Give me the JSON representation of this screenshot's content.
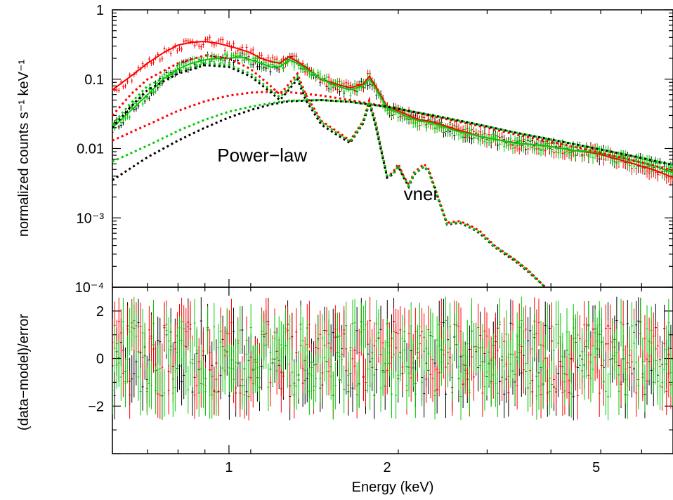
{
  "chart_data": [
    {
      "type": "line",
      "panel": "spectrum",
      "ylabel": "normalized counts s⁻¹ keV⁻¹",
      "yscale": "log",
      "xscale": "log",
      "xlim": [
        0.6,
        7.0
      ],
      "ylim": [
        0.0001,
        1
      ],
      "yticks": [
        {
          "value": 1,
          "label": "1"
        },
        {
          "value": 0.1,
          "label": "0.1"
        },
        {
          "value": 0.01,
          "label": "0.01"
        },
        {
          "value": 0.001,
          "label": "10⁻³"
        },
        {
          "value": 0.0001,
          "label": "10⁻⁴"
        }
      ],
      "annotations": [
        {
          "text": "Power−law",
          "x": 0.95,
          "y": 0.0065
        },
        {
          "text": "vnei",
          "x": 2.15,
          "y": 0.0018
        }
      ],
      "series": [
        {
          "color": "#ff0000",
          "style": "solid",
          "role": "total model",
          "x": [
            0.6,
            0.65,
            0.7,
            0.75,
            0.8,
            0.85,
            0.9,
            0.95,
            1.0,
            1.05,
            1.1,
            1.15,
            1.2,
            1.25,
            1.3,
            1.35,
            1.4,
            1.45,
            1.5,
            1.6,
            1.7,
            1.8,
            1.85,
            1.9,
            2.0,
            2.1,
            2.2,
            2.3,
            2.4,
            2.5,
            2.7,
            3.0,
            3.5,
            4.0,
            4.5,
            5.0,
            5.5,
            6.0,
            6.5,
            7.0
          ],
          "y": [
            0.07,
            0.11,
            0.17,
            0.24,
            0.31,
            0.34,
            0.35,
            0.33,
            0.3,
            0.27,
            0.24,
            0.2,
            0.18,
            0.17,
            0.21,
            0.18,
            0.15,
            0.12,
            0.1,
            0.085,
            0.075,
            0.085,
            0.11,
            0.08,
            0.04,
            0.035,
            0.03,
            0.026,
            0.025,
            0.023,
            0.019,
            0.015,
            0.012,
            0.011,
            0.0095,
            0.0085,
            0.007,
            0.0058,
            0.0048,
            0.0038
          ]
        },
        {
          "color": "#00cc00",
          "style": "solid",
          "role": "total model",
          "x": [
            0.6,
            0.65,
            0.7,
            0.75,
            0.8,
            0.85,
            0.9,
            0.95,
            1.0,
            1.05,
            1.1,
            1.15,
            1.2,
            1.25,
            1.3,
            1.35,
            1.4,
            1.45,
            1.5,
            1.6,
            1.7,
            1.8,
            1.85,
            1.9,
            2.0,
            2.1,
            2.2,
            2.3,
            2.4,
            2.5,
            2.7,
            3.0,
            3.5,
            4.0,
            4.5,
            5.0,
            5.5,
            6.0,
            6.5,
            7.0
          ],
          "y": [
            0.02,
            0.035,
            0.06,
            0.1,
            0.14,
            0.17,
            0.19,
            0.2,
            0.2,
            0.21,
            0.19,
            0.17,
            0.15,
            0.15,
            0.19,
            0.17,
            0.14,
            0.12,
            0.1,
            0.08,
            0.07,
            0.08,
            0.1,
            0.075,
            0.038,
            0.033,
            0.028,
            0.025,
            0.024,
            0.022,
            0.018,
            0.015,
            0.012,
            0.011,
            0.0095,
            0.0088,
            0.0075,
            0.0065,
            0.0055,
            0.0045
          ]
        },
        {
          "color": "#ff0000",
          "style": "dotted",
          "role": "power-law component",
          "x": [
            0.6,
            0.7,
            0.8,
            0.9,
            1.0,
            1.1,
            1.2,
            1.3,
            1.5,
            1.7,
            2.0,
            2.5,
            3.0,
            3.5,
            4.0,
            5.0,
            6.0,
            7.0
          ],
          "y": [
            0.013,
            0.022,
            0.035,
            0.048,
            0.058,
            0.064,
            0.066,
            0.065,
            0.058,
            0.05,
            0.04,
            0.028,
            0.021,
            0.016,
            0.013,
            0.009,
            0.0065,
            0.0048
          ]
        },
        {
          "color": "#000000",
          "style": "dotted",
          "role": "power-law component",
          "x": [
            0.6,
            0.7,
            0.8,
            0.9,
            1.0,
            1.1,
            1.2,
            1.3,
            1.5,
            1.7,
            2.0,
            2.5,
            3.0,
            3.5,
            4.0,
            5.0,
            6.0,
            7.0
          ],
          "y": [
            0.0035,
            0.0075,
            0.013,
            0.02,
            0.028,
            0.036,
            0.043,
            0.048,
            0.05,
            0.047,
            0.04,
            0.029,
            0.022,
            0.017,
            0.014,
            0.01,
            0.0075,
            0.0058
          ]
        },
        {
          "color": "#00cc00",
          "style": "dotted",
          "role": "power-law component",
          "x": [
            0.6,
            0.7,
            0.8,
            0.9,
            1.0,
            1.1,
            1.2,
            1.3,
            1.5,
            1.7,
            2.0,
            2.5,
            3.0,
            3.5,
            4.0,
            5.0,
            6.0,
            7.0
          ],
          "y": [
            0.0065,
            0.011,
            0.018,
            0.026,
            0.034,
            0.04,
            0.045,
            0.049,
            0.05,
            0.047,
            0.04,
            0.029,
            0.022,
            0.017,
            0.014,
            0.01,
            0.0075,
            0.0058
          ]
        },
        {
          "color": "#ff0000",
          "style": "dotted",
          "role": "vnei component",
          "x": [
            0.6,
            0.65,
            0.7,
            0.8,
            0.9,
            1.0,
            1.1,
            1.2,
            1.25,
            1.3,
            1.35,
            1.4,
            1.5,
            1.6,
            1.7,
            1.8,
            1.85,
            1.9,
            2.0,
            2.05,
            2.1,
            2.15,
            2.2,
            2.25,
            2.35,
            2.4,
            2.5,
            2.6,
            2.75,
            2.9,
            3.0,
            3.2,
            3.5,
            3.7,
            4.0
          ],
          "y": [
            0.03,
            0.06,
            0.1,
            0.17,
            0.22,
            0.2,
            0.14,
            0.08,
            0.06,
            0.085,
            0.12,
            0.06,
            0.025,
            0.018,
            0.013,
            0.025,
            0.05,
            0.025,
            0.004,
            0.0045,
            0.006,
            0.004,
            0.003,
            0.0045,
            0.006,
            0.005,
            0.002,
            0.00085,
            0.0009,
            0.00075,
            0.00065,
            0.0004,
            0.00025,
            0.00018,
            0.0001
          ]
        },
        {
          "color": "#000000",
          "style": "dotted",
          "role": "vnei component",
          "x": [
            0.6,
            0.65,
            0.7,
            0.8,
            0.9,
            1.0,
            1.1,
            1.2,
            1.25,
            1.3,
            1.35,
            1.4,
            1.5,
            1.6,
            1.7,
            1.8,
            1.85,
            1.9,
            2.0,
            2.05,
            2.1,
            2.15,
            2.2,
            2.25,
            2.35,
            2.4,
            2.5,
            2.6,
            2.75,
            2.9,
            3.0,
            3.2,
            3.5,
            3.7,
            4.0
          ],
          "y": [
            0.02,
            0.04,
            0.07,
            0.12,
            0.16,
            0.15,
            0.11,
            0.065,
            0.05,
            0.07,
            0.1,
            0.05,
            0.022,
            0.016,
            0.012,
            0.023,
            0.045,
            0.022,
            0.0038,
            0.0042,
            0.0055,
            0.0038,
            0.0028,
            0.0042,
            0.0055,
            0.0046,
            0.0019,
            0.0008,
            0.00085,
            0.0007,
            0.0006,
            0.00038,
            0.00024,
            0.00017,
            0.0001
          ]
        },
        {
          "color": "#00cc00",
          "style": "dotted",
          "role": "vnei component",
          "x": [
            0.6,
            0.65,
            0.7,
            0.8,
            0.9,
            1.0,
            1.1,
            1.2,
            1.25,
            1.3,
            1.35,
            1.4,
            1.5,
            1.6,
            1.7,
            1.8,
            1.85,
            1.9,
            2.0,
            2.05,
            2.1,
            2.15,
            2.2,
            2.25,
            2.35,
            2.4,
            2.5,
            2.6,
            2.75,
            2.9,
            3.0,
            3.2,
            3.5,
            3.7,
            4.0
          ],
          "y": [
            0.022,
            0.045,
            0.08,
            0.13,
            0.17,
            0.16,
            0.12,
            0.07,
            0.055,
            0.075,
            0.11,
            0.055,
            0.024,
            0.017,
            0.0125,
            0.024,
            0.047,
            0.023,
            0.0039,
            0.0043,
            0.0056,
            0.0039,
            0.0029,
            0.0043,
            0.0056,
            0.0047,
            0.00195,
            0.00082,
            0.00087,
            0.00072,
            0.00062,
            0.00039,
            0.00025,
            0.000175,
            0.0001
          ]
        }
      ]
    },
    {
      "type": "scatter",
      "panel": "residuals",
      "xlabel": "Energy (keV)",
      "ylabel": "(data−model)/error",
      "xscale": "log",
      "xlim": [
        0.6,
        7.0
      ],
      "ylim": [
        -4,
        3
      ],
      "xticks": [
        {
          "value": 1,
          "label": "1"
        },
        {
          "value": 2,
          "label": "2"
        },
        {
          "value": 5,
          "label": "5"
        }
      ],
      "yticks": [
        {
          "value": 2,
          "label": "2"
        },
        {
          "value": 0,
          "label": "0"
        },
        {
          "value": -2,
          "label": "−2"
        }
      ],
      "series": [
        {
          "color": "#000000",
          "points_per_keV_estimate": "dense",
          "x": [
            0.62,
            0.7,
            0.8,
            0.9,
            1.0,
            1.1,
            1.2,
            1.35,
            1.5,
            1.7,
            1.9,
            2.1,
            2.4,
            2.7,
            3.0,
            3.5,
            4.0,
            4.5,
            5.0,
            5.5,
            6.0,
            6.5,
            7.0
          ],
          "y": [
            0.3,
            -0.5,
            0.8,
            -1.2,
            0.4,
            1.1,
            -0.7,
            0.2,
            -1.5,
            0.9,
            -0.3,
            0.6,
            -0.8,
            1.2,
            -0.4,
            0.5,
            -1.0,
            0.7,
            -0.2,
            0.9,
            -0.6,
            0.3,
            -0.1
          ]
        },
        {
          "color": "#ff0000",
          "x": [
            0.62,
            0.7,
            0.8,
            0.9,
            1.0,
            1.1,
            1.2,
            1.35,
            1.5,
            1.7,
            1.9,
            2.1,
            2.4,
            2.7,
            3.0,
            3.5,
            4.0,
            4.5,
            5.0,
            5.5,
            6.0,
            6.5,
            7.0
          ],
          "y": [
            -0.6,
            0.9,
            -0.2,
            1.0,
            -1.1,
            0.3,
            0.8,
            -0.9,
            0.5,
            -0.4,
            1.3,
            -0.7,
            0.2,
            -1.0,
            0.7,
            -0.3,
            0.9,
            -0.5,
            0.4,
            -0.8,
            0.6,
            -0.2,
            0.5
          ]
        },
        {
          "color": "#00cc00",
          "x": [
            0.62,
            0.7,
            0.8,
            0.9,
            1.0,
            1.1,
            1.2,
            1.35,
            1.5,
            1.7,
            1.9,
            2.1,
            2.4,
            2.7,
            3.0,
            3.5,
            4.0,
            4.5,
            5.0,
            5.5,
            6.0,
            6.5,
            7.0
          ],
          "y": [
            0.5,
            -1.0,
            0.4,
            -0.3,
            1.2,
            -0.8,
            0.1,
            0.9,
            -0.6,
            0.3,
            -1.1,
            0.8,
            -0.2,
            0.5,
            -0.9,
            1.0,
            -0.3,
            0.2,
            -0.7,
            0.6,
            -0.4,
            0.8,
            -0.5
          ]
        }
      ]
    }
  ]
}
